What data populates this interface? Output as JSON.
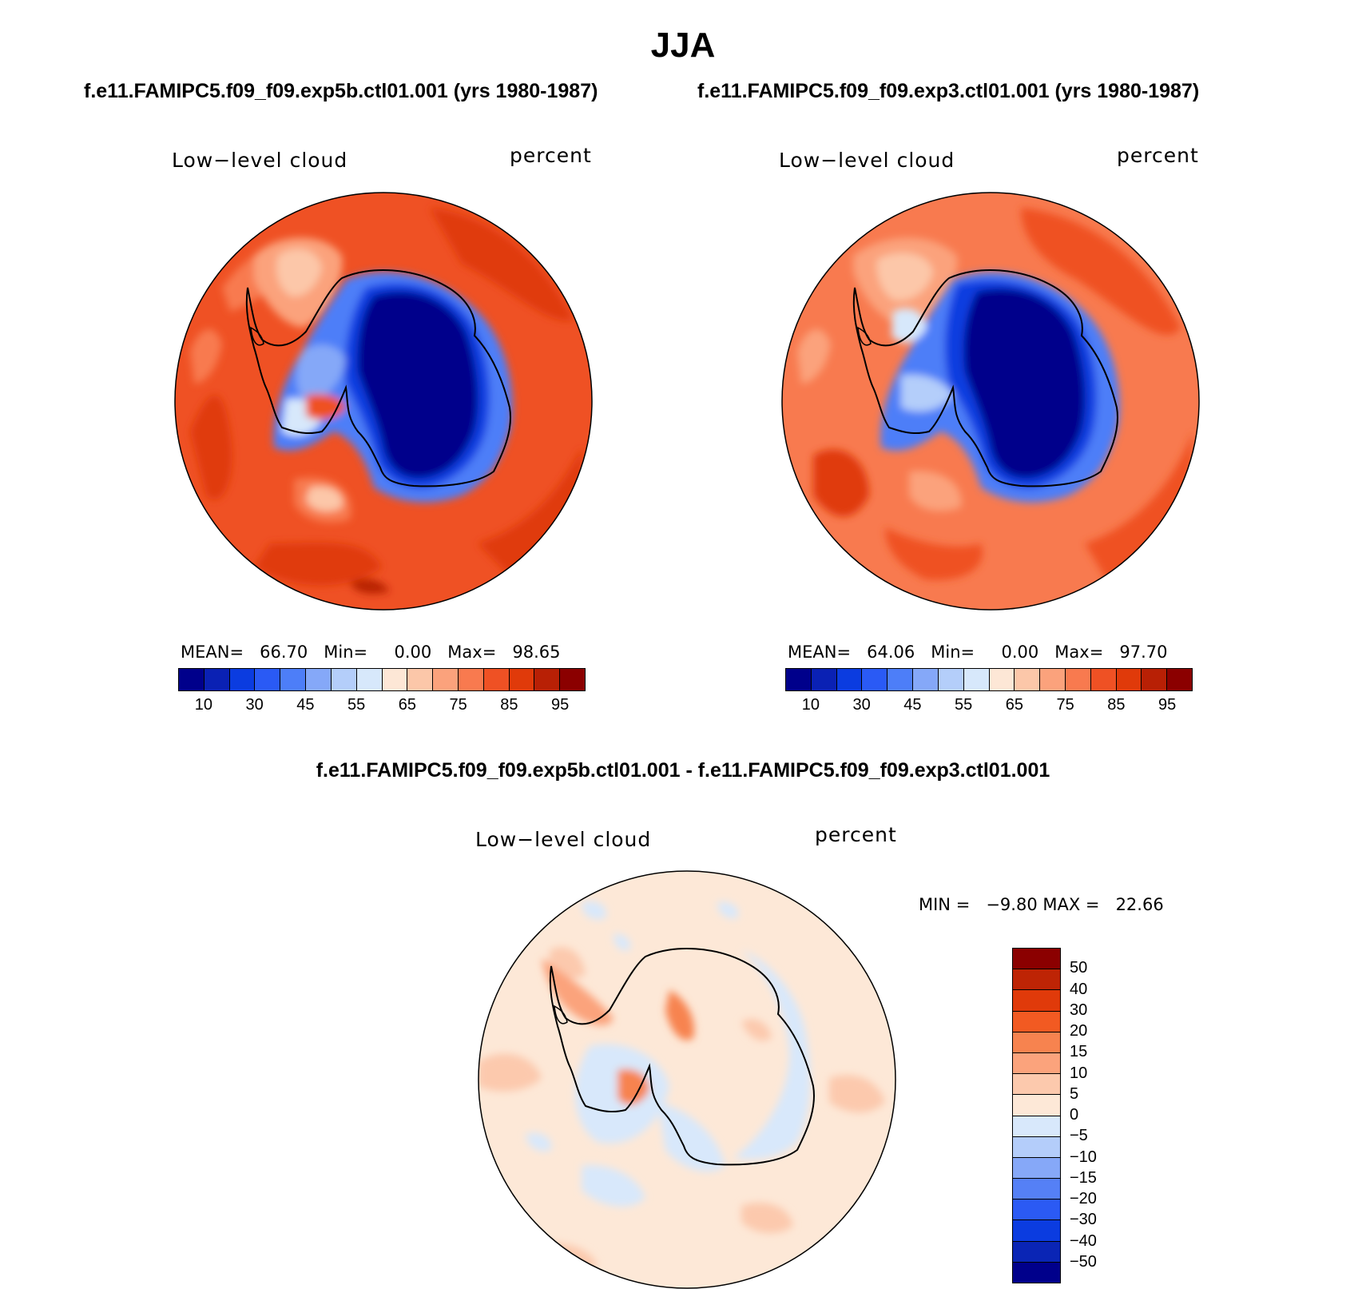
{
  "title": "JJA",
  "subtitle_left": "f.e11.FAMIPC5.f09_f09.exp5b.ctl01.001 (yrs 1980-1987)",
  "subtitle_right": "f.e11.FAMIPC5.f09_f09.exp3.ctl01.001 (yrs 1980-1987)",
  "diff_title": "f.e11.FAMIPC5.f09_f09.exp5b.ctl01.001 - f.e11.FAMIPC5.f09_f09.exp3.ctl01.001",
  "panel_left": {
    "variable": "Low−level cloud",
    "units": "percent",
    "mean_label": "MEAN=",
    "mean_value": "66.70",
    "min_label": "Min=",
    "min_value": "0.00",
    "max_label": "Max=",
    "max_value": "98.65"
  },
  "panel_right": {
    "variable": "Low−level cloud",
    "units": "percent",
    "mean_label": "MEAN=",
    "mean_value": "64.06",
    "min_label": "Min=",
    "min_value": "0.00",
    "max_label": "Max=",
    "max_value": "97.70"
  },
  "panel_diff": {
    "variable": "Low−level cloud",
    "units": "percent",
    "min_label": "MIN =",
    "min_value": "−9.80",
    "max_label": "MAX =",
    "max_value": "22.66"
  },
  "colorbar_main": {
    "colors": [
      "#00008b",
      "#0a21b4",
      "#0b3ce0",
      "#2a5af5",
      "#4d7ef8",
      "#85a8f8",
      "#b4cefa",
      "#d7e8fb",
      "#fde7d6",
      "#fcc7a9",
      "#fba27c",
      "#f87a4f",
      "#ef5124",
      "#e03a0a",
      "#b82005",
      "#8b0000"
    ],
    "tick_labels": [
      "10",
      "30",
      "45",
      "55",
      "65",
      "75",
      "85",
      "95"
    ]
  },
  "colorbar_diff": {
    "colors": [
      "#8b0000",
      "#be2405",
      "#e03a0a",
      "#f25a22",
      "#f7834f",
      "#fba37c",
      "#fcc9ad",
      "#fde8d7",
      "#d8e8fb",
      "#b4cdfa",
      "#86a8f8",
      "#5580f6",
      "#2b5af4",
      "#0b3ce0",
      "#0a25b5",
      "#00008b"
    ],
    "tick_labels": [
      "50",
      "40",
      "30",
      "20",
      "15",
      "10",
      "5",
      "0",
      "−5",
      "−10",
      "−15",
      "−20",
      "−30",
      "−40",
      "−50"
    ]
  }
}
